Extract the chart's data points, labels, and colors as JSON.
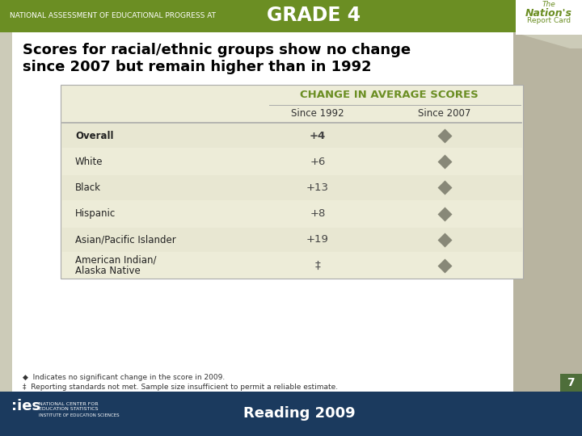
{
  "title_line1": "Scores for racial/ethnic groups show no change",
  "title_line2": "since 2007 but remain higher than in 1992",
  "header_top": "CHANGE IN AVERAGE SCORES",
  "col1_header": "Since 1992",
  "col2_header": "Since 2007",
  "rows": [
    {
      "label": "Overall",
      "val1992": "+4",
      "bold": true
    },
    {
      "label": "White",
      "val1992": "+6",
      "bold": false
    },
    {
      "label": "Black",
      "val1992": "+13",
      "bold": false
    },
    {
      "label": "Hispanic",
      "val1992": "+8",
      "bold": false
    },
    {
      "label": "Asian/Pacific Islander",
      "val1992": "+19",
      "bold": false
    },
    {
      "label": "American Indian/\nAlaska Native",
      "val1992": "‡",
      "bold": false
    }
  ],
  "footnote1": "◆  Indicates no significant change in the score in 2009.",
  "footnote2": "‡  Reporting standards not met. Sample size insufficient to permit a reliable estimate.",
  "grade_bar_color": "#6b8e23",
  "table_bg_color": "#edecd8",
  "table_border_color": "#aaaaaa",
  "diamond_color": "#888878",
  "slide_bg_color": "#cccbb8",
  "white_panel_color": "#ffffff",
  "bottom_bar_color": "#1b3a5e",
  "title_color": "#000000",
  "header_text_color": "#6b8e23",
  "row_alt_color": "#e4e3cc",
  "grade_label": "NATIONAL ASSESSMENT OF EDUCATIONAL PROGRESS AT",
  "grade_text": "GRADE 4",
  "page_number": "7",
  "page_box_color": "#4e6e3a",
  "bottom_text": "Reading 2009",
  "nations_color": "#6b8e23"
}
